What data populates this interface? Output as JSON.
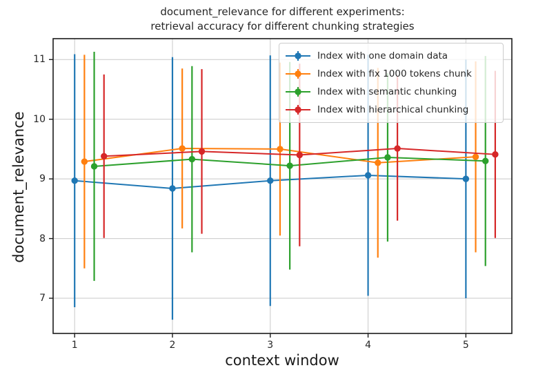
{
  "figure": {
    "title": "document_relevance for different experiments:\nretrieval accuracy for different chunking strategies",
    "xlabel": "context window",
    "ylabel": "document_relevance"
  },
  "colors": {
    "background": "#ffffff",
    "grid": "#c8c8c8",
    "spine": "#1a1a1a",
    "text": "#262626",
    "legend_border": "#cccccc"
  },
  "chart_data": {
    "type": "line",
    "title": "document_relevance for different experiments:\nretrieval accuracy for different chunking strategies",
    "xlabel": "context window",
    "ylabel": "document_relevance",
    "x": [
      1,
      2,
      3,
      4,
      5
    ],
    "xticks": [
      "1",
      "2",
      "3",
      "4",
      "5"
    ],
    "yticks": [
      "7",
      "8",
      "9",
      "10",
      "11"
    ],
    "ytick_values": [
      7,
      8,
      9,
      10,
      11
    ],
    "xlim": [
      0.78,
      5.47
    ],
    "ylim": [
      6.41,
      11.35
    ],
    "grid": true,
    "marker": "o",
    "error_bars": true,
    "legend_position": "upper right",
    "series": [
      {
        "name": "Index with one domain data",
        "color": "#1f77b4",
        "x_offset": 0.0,
        "values": [
          8.97,
          8.84,
          8.97,
          9.06,
          9.0
        ],
        "yerr": [
          2.12,
          2.2,
          2.1,
          2.02,
          2.0
        ]
      },
      {
        "name": "Index with fix 1000 tokens chunk",
        "color": "#ff7f0e",
        "x_offset": 0.1,
        "values": [
          9.29,
          9.51,
          9.5,
          9.27,
          9.37
        ],
        "yerr": [
          1.79,
          1.34,
          1.45,
          1.59,
          1.6
        ]
      },
      {
        "name": "Index with semantic chunking",
        "color": "#2ca02c",
        "x_offset": 0.2,
        "values": [
          9.21,
          9.33,
          9.22,
          9.36,
          9.3
        ],
        "yerr": [
          1.92,
          1.56,
          1.74,
          1.41,
          1.76
        ]
      },
      {
        "name": "Index with hierarchical chunking",
        "color": "#d62728",
        "x_offset": 0.3,
        "values": [
          9.38,
          9.46,
          9.4,
          9.51,
          9.41
        ],
        "yerr": [
          1.37,
          1.38,
          1.53,
          1.21,
          1.4
        ]
      }
    ]
  }
}
